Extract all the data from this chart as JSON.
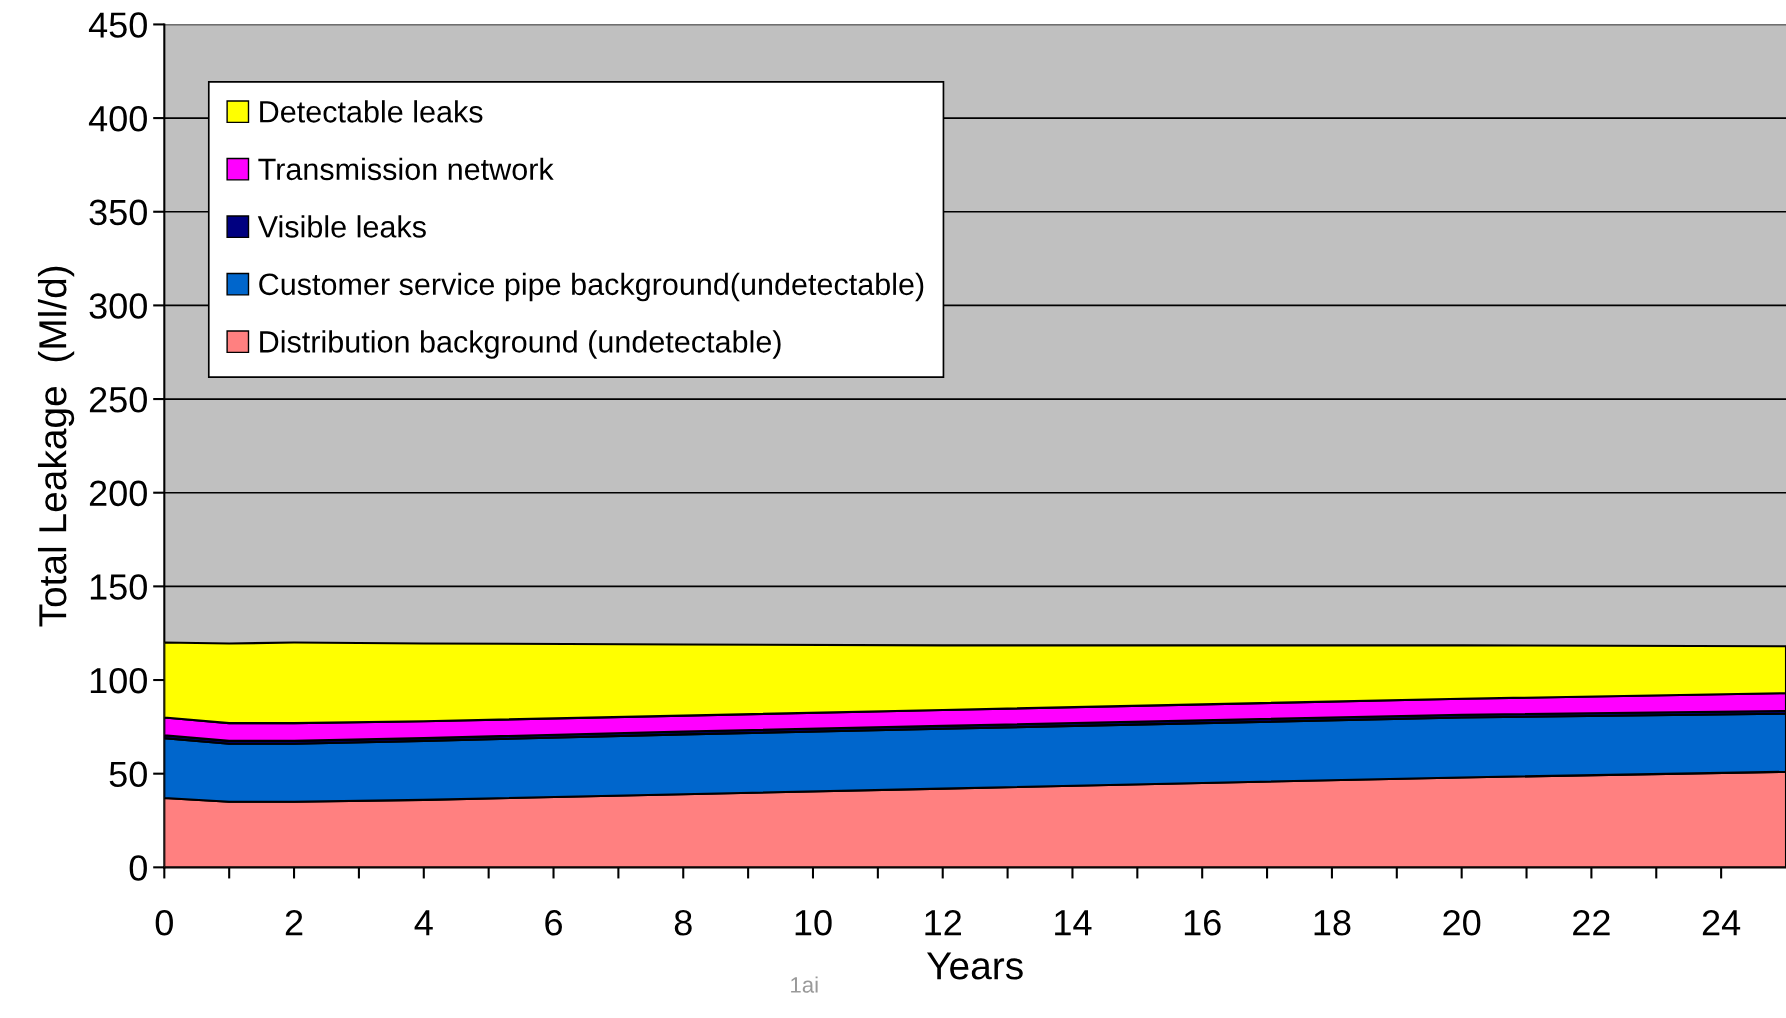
{
  "chart_data": {
    "type": "area",
    "stacked": true,
    "xlabel": "Years",
    "ylabel": "Total Leakage  (Ml/d)",
    "x": [
      0,
      1,
      2,
      4,
      8,
      12,
      16,
      20,
      25
    ],
    "series": [
      {
        "name": "Distribution background (undetectable)",
        "color": "#ff8080",
        "values": [
          37,
          35,
          35,
          36,
          39,
          42,
          45,
          48,
          51
        ]
      },
      {
        "name": "Customer service pipe background(undetectable)",
        "color": "#0066cc",
        "values": [
          32,
          31,
          31,
          31.5,
          32,
          32,
          32,
          32,
          31
        ]
      },
      {
        "name": "Visible leaks",
        "color": "#000080",
        "values": [
          1.5,
          1.5,
          1.5,
          1.5,
          1.5,
          1.5,
          1.5,
          1.5,
          1.5
        ]
      },
      {
        "name": "Transmission network",
        "color": "#ff00ff",
        "values": [
          9.5,
          9.5,
          9.5,
          9,
          8.5,
          8.5,
          8.5,
          8.5,
          9.5
        ]
      },
      {
        "name": "Detectable leaks",
        "color": "#ffff00",
        "values": [
          40,
          42.5,
          43,
          41.5,
          38,
          34.5,
          31.5,
          28.5,
          25
        ]
      }
    ],
    "xlim": [
      0,
      25
    ],
    "xticks": [
      0,
      {
        "value": 1,
        "label": null
      },
      2,
      {
        "value": 3,
        "label": null
      },
      4,
      {
        "value": 5,
        "label": null
      },
      6,
      {
        "value": 7,
        "label": null
      },
      8,
      {
        "value": 9,
        "label": null
      },
      10,
      {
        "value": 11,
        "label": null
      },
      12,
      {
        "value": 13,
        "label": null
      },
      14,
      {
        "value": 15,
        "label": null
      },
      16,
      {
        "value": 17,
        "label": null
      },
      18,
      {
        "value": 19,
        "label": null
      },
      20,
      {
        "value": 21,
        "label": null
      },
      22,
      {
        "value": 23,
        "label": null
      },
      24
    ],
    "ylim": [
      0,
      450
    ],
    "yticks": [
      0,
      50,
      100,
      150,
      200,
      250,
      300,
      350,
      400,
      450
    ],
    "grid": "y",
    "legend": "top left",
    "annotations": [
      "1ai"
    ]
  }
}
